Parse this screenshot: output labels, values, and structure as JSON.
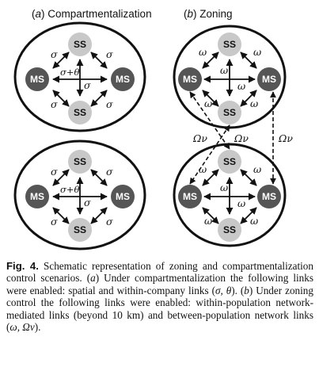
{
  "panels": {
    "a": {
      "letter": "a",
      "title": "Compartmentalization"
    },
    "b": {
      "letter": "b",
      "title": "Zoning"
    }
  },
  "nodes": {
    "ss": "SS",
    "ms": "MS"
  },
  "symbols": {
    "sigma": "σ",
    "sigma_theta": "σ+θ",
    "omega": "ω",
    "Omega_nu": "Ων"
  },
  "caption": {
    "lead": "Fig. 4.",
    "s1": " Schematic representation of zoning and compartmentalization control scenarios. (",
    "s2": ") Under compartmentalization the following links were enabled: spatial and within-company links (",
    "s3": "). (",
    "s4": ") Under zoning control the following links were enabled: within-population network-mediated links (beyond 10 km) and between-population network links (",
    "s5": ").",
    "letter_a": "a",
    "letter_b": "b",
    "links_a": "σ, θ",
    "links_b": "ω, Ων"
  },
  "colors": {
    "ss_fill": "#c8c8c8",
    "ms_fill": "#555555",
    "circle_stroke": "#111111"
  }
}
